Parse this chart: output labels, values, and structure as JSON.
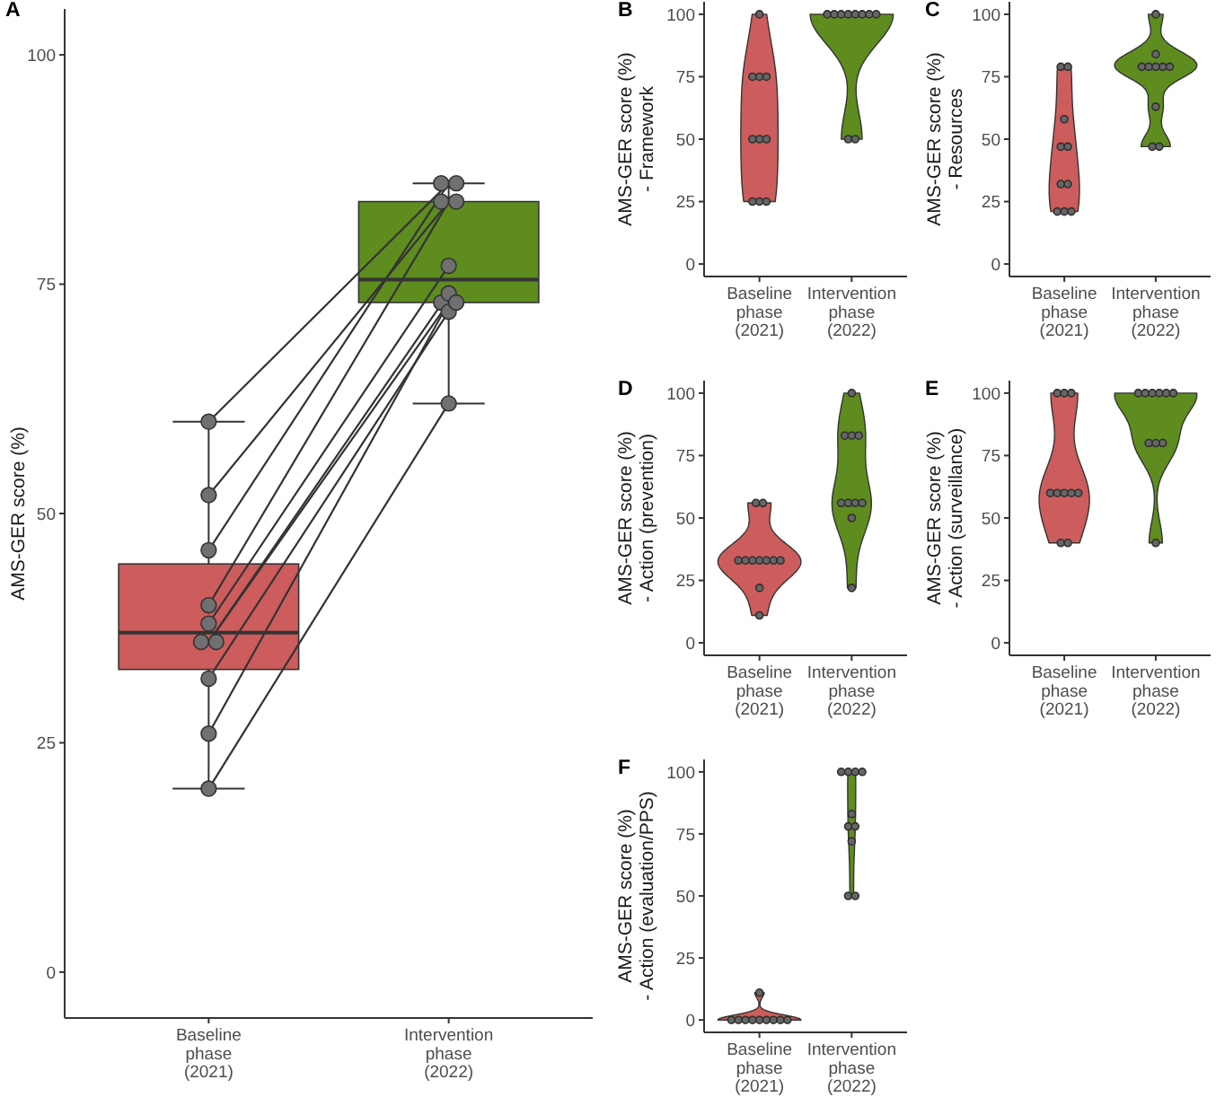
{
  "chart_data": [
    {
      "type": "box",
      "title": "A",
      "ylabel": "AMS-GER score (%)",
      "categories": [
        "Baseline\nphase\n(2021)",
        "Intervention\nphase\n(2022)"
      ],
      "colors": [
        "#cd5c5c",
        "#5e8c1f"
      ],
      "boxes": [
        {
          "low": 20,
          "q1": 33,
          "median": 37,
          "q3": 44.5,
          "high": 60
        },
        {
          "low": 62,
          "q1": 73,
          "median": 75.5,
          "q3": 84,
          "high": 86
        }
      ],
      "series": [
        {
          "type": "line",
          "color": "#333333",
          "x": [
            "Baseline\nphase\n(2021)",
            "Intervention\nphase\n(2022)"
          ],
          "values": [
            60,
            86
          ]
        },
        {
          "type": "line",
          "color": "#333333",
          "x": [
            "Baseline\nphase\n(2021)",
            "Intervention\nphase\n(2022)"
          ],
          "values": [
            52,
            84
          ]
        },
        {
          "type": "line",
          "color": "#333333",
          "x": [
            "Baseline\nphase\n(2021)",
            "Intervention\nphase\n(2022)"
          ],
          "values": [
            46,
            86
          ]
        },
        {
          "type": "line",
          "color": "#333333",
          "x": [
            "Baseline\nphase\n(2021)",
            "Intervention\nphase\n(2022)"
          ],
          "values": [
            40,
            84
          ]
        },
        {
          "type": "line",
          "color": "#333333",
          "x": [
            "Baseline\nphase\n(2021)",
            "Intervention\nphase\n(2022)"
          ],
          "values": [
            38,
            77
          ]
        },
        {
          "type": "line",
          "color": "#333333",
          "x": [
            "Baseline\nphase\n(2021)",
            "Intervention\nphase\n(2022)"
          ],
          "values": [
            36,
            73
          ]
        },
        {
          "type": "line",
          "color": "#333333",
          "x": [
            "Baseline\nphase\n(2021)",
            "Intervention\nphase\n(2022)"
          ],
          "values": [
            36,
            74
          ]
        },
        {
          "type": "line",
          "color": "#333333",
          "x": [
            "Baseline\nphase\n(2021)",
            "Intervention\nphase\n(2022)"
          ],
          "values": [
            32,
            72
          ]
        },
        {
          "type": "line",
          "color": "#333333",
          "x": [
            "Baseline\nphase\n(2021)",
            "Intervention\nphase\n(2022)"
          ],
          "values": [
            26,
            73
          ]
        },
        {
          "type": "line",
          "color": "#333333",
          "x": [
            "Baseline\nphase\n(2021)",
            "Intervention\nphase\n(2022)"
          ],
          "values": [
            20,
            62
          ]
        }
      ],
      "marker": "circle",
      "ylim": [
        -5,
        105
      ],
      "yticks": [
        0,
        25,
        50,
        75,
        100
      ]
    },
    {
      "type": "scatter",
      "title": "B",
      "ylabel": "AMS-GER score (%)\n- Framework",
      "categories": [
        "Baseline\nphase\n(2021)",
        "Intervention\nphase\n(2022)"
      ],
      "colors": [
        "#cd5c5c",
        "#5e8c1f"
      ],
      "series": [
        {
          "color": "#666666",
          "x": [
            "Baseline\nphase\n(2021)",
            "Baseline\nphase\n(2021)",
            "Baseline\nphase\n(2021)",
            "Baseline\nphase\n(2021)",
            "Baseline\nphase\n(2021)",
            "Baseline\nphase\n(2021)",
            "Baseline\nphase\n(2021)",
            "Baseline\nphase\n(2021)",
            "Baseline\nphase\n(2021)",
            "Baseline\nphase\n(2021)",
            "Intervention\nphase\n(2022)",
            "Intervention\nphase\n(2022)",
            "Intervention\nphase\n(2022)",
            "Intervention\nphase\n(2022)",
            "Intervention\nphase\n(2022)",
            "Intervention\nphase\n(2022)",
            "Intervention\nphase\n(2022)",
            "Intervention\nphase\n(2022)",
            "Intervention\nphase\n(2022)",
            "Intervention\nphase\n(2022)"
          ],
          "values": [
            100,
            75,
            75,
            75,
            50,
            50,
            50,
            25,
            25,
            25,
            100,
            100,
            100,
            100,
            100,
            100,
            100,
            100,
            50,
            50
          ]
        }
      ],
      "marker": "circle",
      "ylim": [
        -5,
        105
      ],
      "yticks": [
        0,
        25,
        50,
        75,
        100
      ]
    },
    {
      "type": "scatter",
      "title": "C",
      "ylabel": "AMS-GER score (%)\n- Resources",
      "categories": [
        "Baseline\nphase\n(2021)",
        "Intervention\nphase\n(2022)"
      ],
      "colors": [
        "#cd5c5c",
        "#5e8c1f"
      ],
      "series": [
        {
          "color": "#666666",
          "x": [
            "Baseline\nphase\n(2021)",
            "Baseline\nphase\n(2021)",
            "Baseline\nphase\n(2021)",
            "Baseline\nphase\n(2021)",
            "Baseline\nphase\n(2021)",
            "Baseline\nphase\n(2021)",
            "Baseline\nphase\n(2021)",
            "Baseline\nphase\n(2021)",
            "Baseline\nphase\n(2021)",
            "Baseline\nphase\n(2021)",
            "Intervention\nphase\n(2022)",
            "Intervention\nphase\n(2022)",
            "Intervention\nphase\n(2022)",
            "Intervention\nphase\n(2022)",
            "Intervention\nphase\n(2022)",
            "Intervention\nphase\n(2022)",
            "Intervention\nphase\n(2022)",
            "Intervention\nphase\n(2022)",
            "Intervention\nphase\n(2022)",
            "Intervention\nphase\n(2022)"
          ],
          "values": [
            79,
            79,
            58,
            47,
            47,
            32,
            32,
            21,
            21,
            21,
            100,
            84,
            79,
            79,
            79,
            79,
            79,
            63,
            47,
            47
          ]
        }
      ],
      "marker": "circle",
      "ylim": [
        -5,
        105
      ],
      "yticks": [
        0,
        25,
        50,
        75,
        100
      ]
    },
    {
      "type": "scatter",
      "title": "D",
      "ylabel": "AMS-GER score (%)\n- Action (prevention)",
      "categories": [
        "Baseline\nphase\n(2021)",
        "Intervention\nphase\n(2022)"
      ],
      "colors": [
        "#cd5c5c",
        "#5e8c1f"
      ],
      "series": [
        {
          "color": "#666666",
          "x": [
            "Baseline\nphase\n(2021)",
            "Baseline\nphase\n(2021)",
            "Baseline\nphase\n(2021)",
            "Baseline\nphase\n(2021)",
            "Baseline\nphase\n(2021)",
            "Baseline\nphase\n(2021)",
            "Baseline\nphase\n(2021)",
            "Baseline\nphase\n(2021)",
            "Baseline\nphase\n(2021)",
            "Baseline\nphase\n(2021)",
            "Baseline\nphase\n(2021)",
            "Intervention\nphase\n(2022)",
            "Intervention\nphase\n(2022)",
            "Intervention\nphase\n(2022)",
            "Intervention\nphase\n(2022)",
            "Intervention\nphase\n(2022)",
            "Intervention\nphase\n(2022)",
            "Intervention\nphase\n(2022)",
            "Intervention\nphase\n(2022)",
            "Intervention\nphase\n(2022)",
            "Intervention\nphase\n(2022)"
          ],
          "values": [
            56,
            56,
            33,
            33,
            33,
            33,
            33,
            33,
            33,
            22,
            11,
            100,
            83,
            83,
            83,
            56,
            56,
            56,
            56,
            50,
            22
          ]
        }
      ],
      "marker": "circle",
      "ylim": [
        -5,
        105
      ],
      "yticks": [
        0,
        25,
        50,
        75,
        100
      ]
    },
    {
      "type": "scatter",
      "title": "E",
      "ylabel": "AMS-GER score (%)\n- Action (surveillance)",
      "categories": [
        "Baseline\nphase\n(2021)",
        "Intervention\nphase\n(2022)"
      ],
      "colors": [
        "#cd5c5c",
        "#5e8c1f"
      ],
      "series": [
        {
          "color": "#666666",
          "x": [
            "Baseline\nphase\n(2021)",
            "Baseline\nphase\n(2021)",
            "Baseline\nphase\n(2021)",
            "Baseline\nphase\n(2021)",
            "Baseline\nphase\n(2021)",
            "Baseline\nphase\n(2021)",
            "Baseline\nphase\n(2021)",
            "Baseline\nphase\n(2021)",
            "Baseline\nphase\n(2021)",
            "Baseline\nphase\n(2021)",
            "Intervention\nphase\n(2022)",
            "Intervention\nphase\n(2022)",
            "Intervention\nphase\n(2022)",
            "Intervention\nphase\n(2022)",
            "Intervention\nphase\n(2022)",
            "Intervention\nphase\n(2022)",
            "Intervention\nphase\n(2022)",
            "Intervention\nphase\n(2022)",
            "Intervention\nphase\n(2022)",
            "Intervention\nphase\n(2022)"
          ],
          "values": [
            100,
            100,
            100,
            60,
            60,
            60,
            60,
            60,
            40,
            40,
            100,
            100,
            100,
            100,
            100,
            100,
            80,
            80,
            80,
            40
          ]
        }
      ],
      "marker": "circle",
      "ylim": [
        -5,
        105
      ],
      "yticks": [
        0,
        25,
        50,
        75,
        100
      ]
    },
    {
      "type": "scatter",
      "title": "F",
      "ylabel": "AMS-GER score (%)\n- Action (evaluation/PPS)",
      "categories": [
        "Baseline\nphase\n(2021)",
        "Intervention\nphase\n(2022)"
      ],
      "colors": [
        "#cd5c5c",
        "#5e8c1f"
      ],
      "series": [
        {
          "color": "#666666",
          "x": [
            "Baseline\nphase\n(2021)",
            "Baseline\nphase\n(2021)",
            "Baseline\nphase\n(2021)",
            "Baseline\nphase\n(2021)",
            "Baseline\nphase\n(2021)",
            "Baseline\nphase\n(2021)",
            "Baseline\nphase\n(2021)",
            "Baseline\nphase\n(2021)",
            "Baseline\nphase\n(2021)",
            "Baseline\nphase\n(2021)",
            "Intervention\nphase\n(2022)",
            "Intervention\nphase\n(2022)",
            "Intervention\nphase\n(2022)",
            "Intervention\nphase\n(2022)",
            "Intervention\nphase\n(2022)",
            "Intervention\nphase\n(2022)",
            "Intervention\nphase\n(2022)",
            "Intervention\nphase\n(2022)",
            "Intervention\nphase\n(2022)",
            "Intervention\nphase\n(2022)"
          ],
          "values": [
            11,
            0,
            0,
            0,
            0,
            0,
            0,
            0,
            0,
            0,
            100,
            100,
            100,
            100,
            83,
            78,
            78,
            72,
            50,
            50
          ]
        }
      ],
      "marker": "circle",
      "ylim": [
        -5,
        105
      ],
      "yticks": [
        0,
        25,
        50,
        75,
        100
      ]
    }
  ]
}
